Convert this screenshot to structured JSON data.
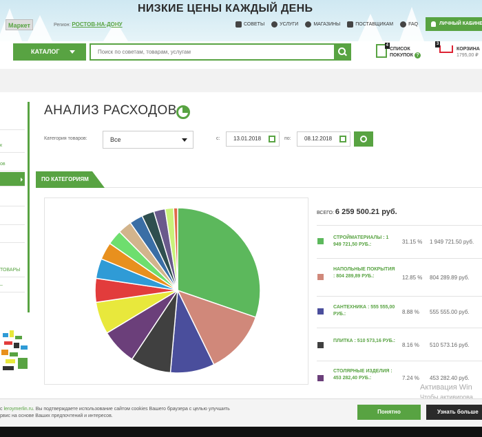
{
  "header": {
    "banner": "НИЗКИЕ ЦЕНЫ КАЖДЫЙ ДЕНЬ",
    "market_label": "Маркет",
    "region_label": "Регион:",
    "region_value": "РОСТОВ-НА-ДОНУ",
    "links": [
      "СОВЕТЫ",
      "УСЛУГИ",
      "МАГАЗИНЫ",
      "ПОСТАВЩИКАМ",
      "FAQ"
    ],
    "account_label": "ЛИЧНЫЙ КАБИНЕТ"
  },
  "nav": {
    "catalog_label": "КАТАЛОГ",
    "search_placeholder": "Поиск по советам, товарам, услугам",
    "shoplist_label_1": "СПИСОК",
    "shoplist_label_2": "ПОКУПОК",
    "shoplist_count": "4",
    "shoplist_help": "?",
    "cart_label": "КОРЗИНА",
    "cart_count": "3",
    "cart_sum": "1795,00 ₽"
  },
  "sidebar": {
    "items": [
      "",
      "к",
      "ов",
      "",
      "",
      "",
      "",
      "ТОВАРЫ",
      "–"
    ]
  },
  "page": {
    "title": "АНАЛИЗ РАСХОДОВ",
    "category_label": "Категория товаров:",
    "category_value": "Все",
    "from_label": "с:",
    "from_date": "13.01.2018",
    "to_label": "по:",
    "to_date": "08.12.2018",
    "tab_label": "ПО КАТЕГОРИЯМ",
    "total_label": "ВСЕГО:",
    "total_value": "6 259 500.21 руб."
  },
  "chart_data": {
    "type": "pie",
    "slices": [
      {
        "label": "СТРОЙМАТЕРИАЛЫ",
        "percent": 31.15,
        "color": "#5cb85c"
      },
      {
        "label": "НАПОЛЬНЫЕ ПОКРЫТИЯ",
        "percent": 12.85,
        "color": "#d0887a"
      },
      {
        "label": "САНТЕХНИКА",
        "percent": 8.88,
        "color": "#4a4e9c"
      },
      {
        "label": "ПЛИТКА",
        "percent": 8.16,
        "color": "#404040"
      },
      {
        "label": "СТОЛЯРНЫЕ ИЗДЕЛИЯ",
        "percent": 7.24,
        "color": "#6b3f7a"
      },
      {
        "label": "",
        "percent": 6.5,
        "color": "#e8e83c"
      },
      {
        "label": "",
        "percent": 4.8,
        "color": "#e23c3c"
      },
      {
        "label": "",
        "percent": 4.0,
        "color": "#2f9bd6"
      },
      {
        "label": "",
        "percent": 3.5,
        "color": "#e8901e"
      },
      {
        "label": "",
        "percent": 3.0,
        "color": "#6ede6e"
      },
      {
        "label": "",
        "percent": 2.8,
        "color": "#d2b48c"
      },
      {
        "label": "",
        "percent": 2.7,
        "color": "#3a6ea5"
      },
      {
        "label": "",
        "percent": 2.5,
        "color": "#2f4f4f"
      },
      {
        "label": "",
        "percent": 2.3,
        "color": "#6a5a8c"
      },
      {
        "label": "",
        "percent": 1.7,
        "color": "#c9f27a"
      },
      {
        "label": "",
        "percent": 0.8,
        "color": "#e06a4a"
      }
    ]
  },
  "legend": [
    {
      "name": "СТРОЙМАТЕРИАЛЫ : 1 949 721,50 РУБ.:",
      "percent": "31.15 %",
      "amount": "1 949 721.50 руб.",
      "color": "#5cb85c"
    },
    {
      "name": "НАПОЛЬНЫЕ ПОКРЫТИЯ : 804 289,89 РУБ.:",
      "percent": "12.85 %",
      "amount": "804 289.89 руб.",
      "color": "#d0887a"
    },
    {
      "name": "САНТЕХНИКА : 555 555,00 РУБ.:",
      "percent": "8.88 %",
      "amount": "555 555.00 руб.",
      "color": "#4a4e9c"
    },
    {
      "name": "ПЛИТКА : 510 573,16 РУБ.:",
      "percent": "8.16 %",
      "amount": "510 573.16 руб.",
      "color": "#404040"
    },
    {
      "name": "СТОЛЯРНЫЕ ИЗДЕЛИЯ : 453 282,40 РУБ.:",
      "percent": "7.24 %",
      "amount": "453 282.40 руб.",
      "color": "#6b3f7a"
    }
  ],
  "watermark": {
    "line1": "Активация Win",
    "line2": "Чтобы активирова"
  },
  "cookie": {
    "link": "leroymerlin.ru",
    "text_1": ". Вы подтверждаете использование сайтом cookies Вашего браузера с целью улучшить",
    "text_2": "рвис на основе Ваших предпочтений и интересов.",
    "prefix": "с",
    "ok_label": "Понятно",
    "more_label": "Узнать больше"
  }
}
